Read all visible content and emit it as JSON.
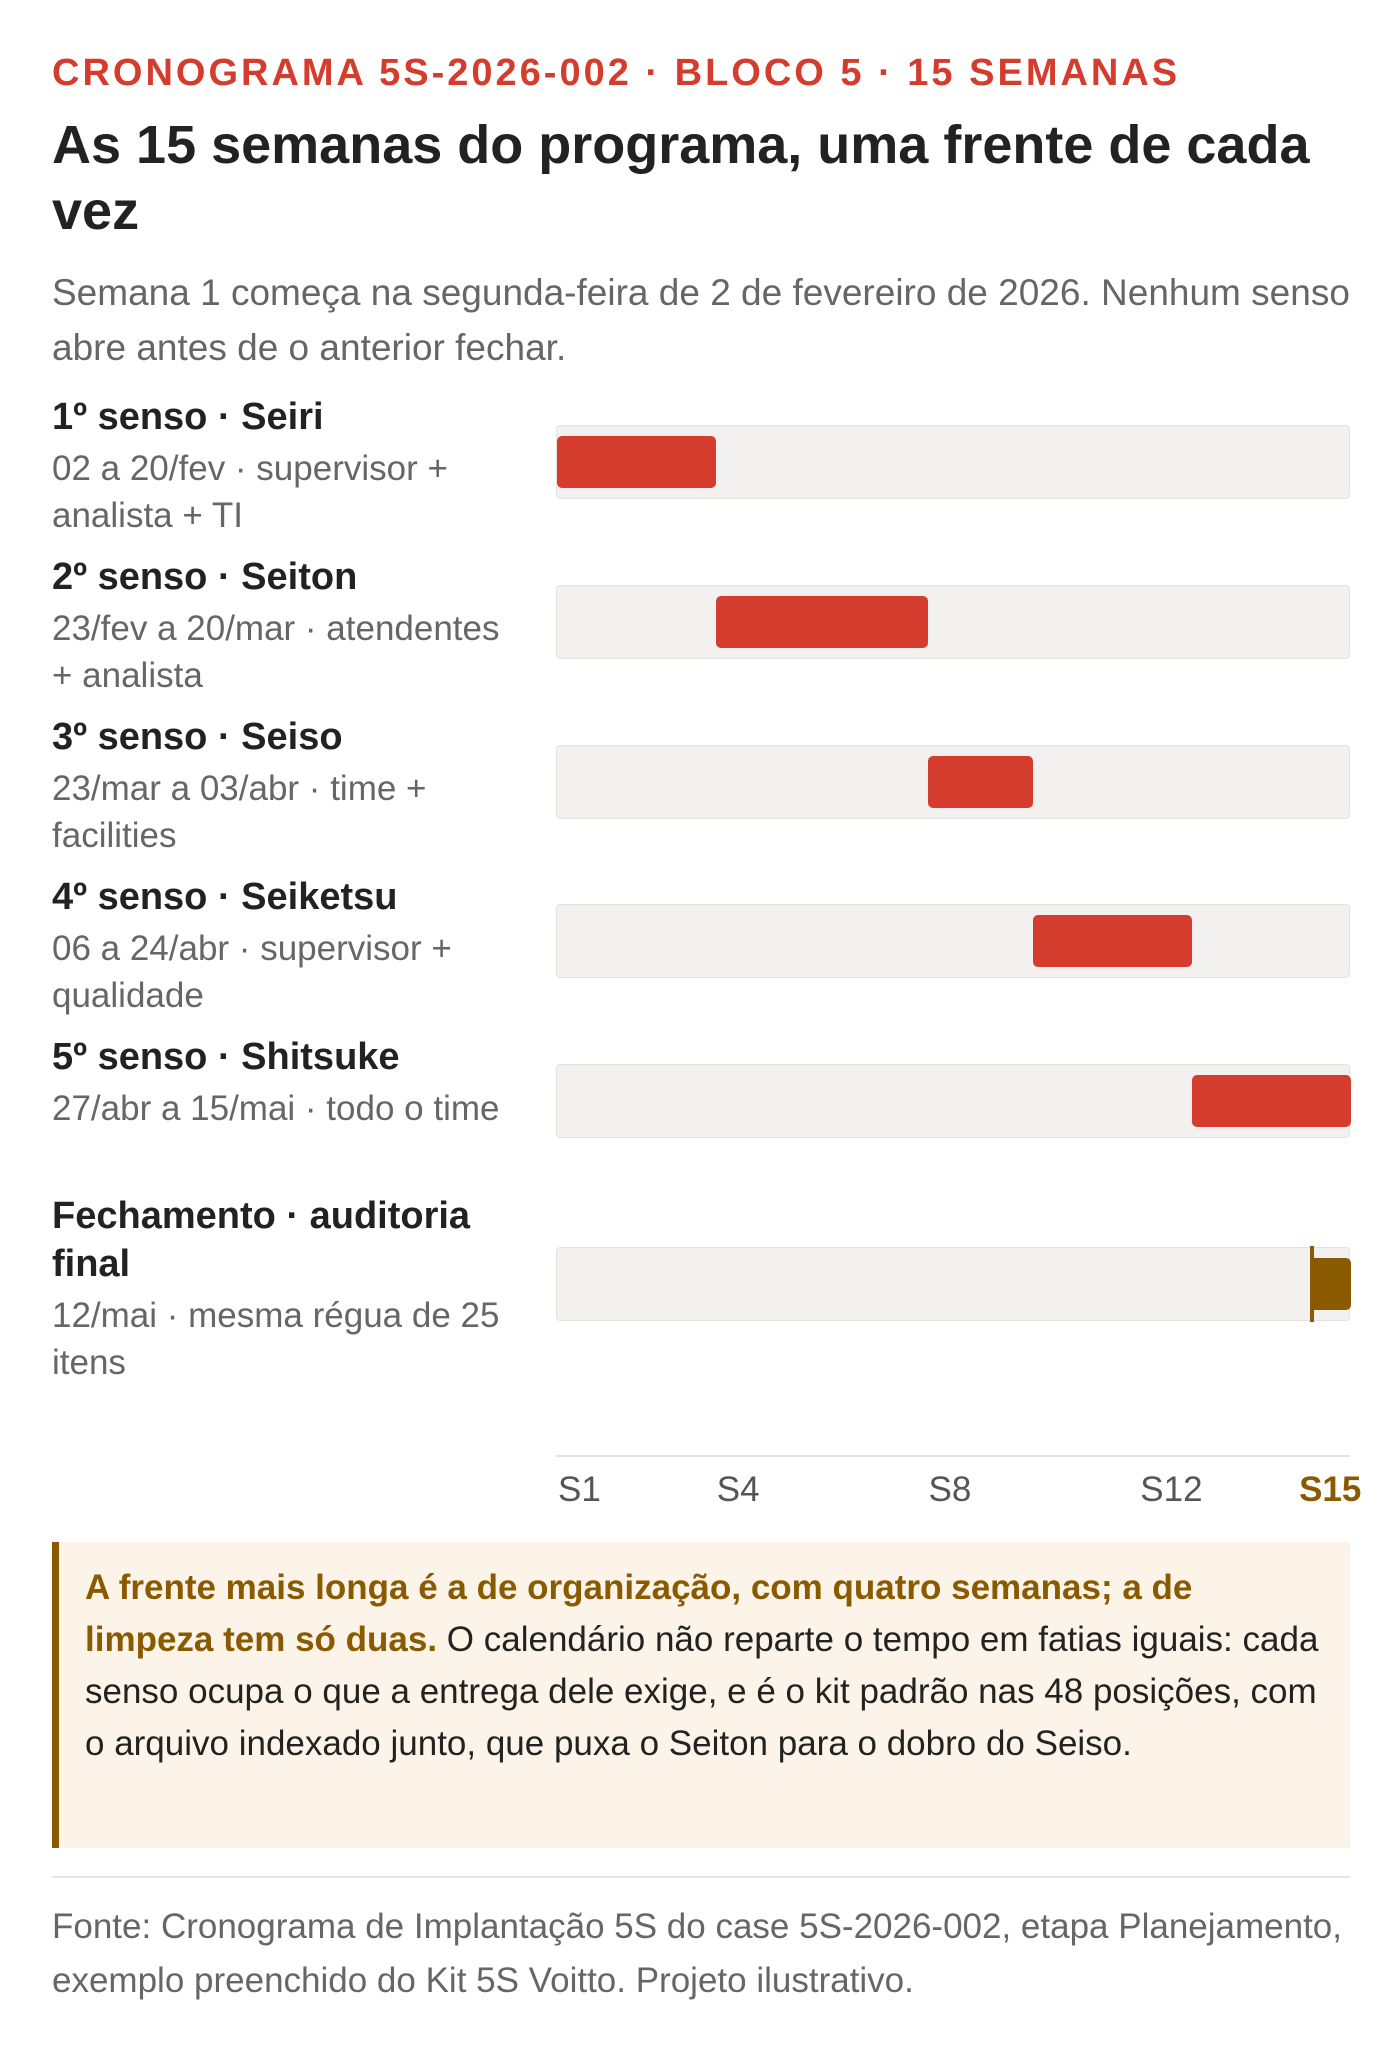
{
  "kicker": "CRONOGRAMA 5S-2026-002 · BLOCO 5 · 15 SEMANAS",
  "title": "As 15 semanas do programa, uma frente de cada vez",
  "subtitle": "Semana 1 começa na segunda-feira de 2 de fevereiro de 2026. Nenhum senso abre antes de o anterior fechar.",
  "chart_data": {
    "type": "gantt",
    "x_unit": "semana",
    "xlim": [
      1,
      16
    ],
    "ticks": [
      "S1",
      "S4",
      "S8",
      "S12",
      "S15"
    ],
    "tick_values": [
      1,
      4,
      8,
      12,
      15
    ],
    "rows": [
      {
        "title": "1º senso · Seiri",
        "subtitle": "02 a 20/fev · supervisor + analista + TI",
        "start_week": 1,
        "end_week": 3,
        "kind": "bar"
      },
      {
        "title": "2º senso · Seiton",
        "subtitle": "23/fev a 20/mar · atendentes + analista",
        "start_week": 4,
        "end_week": 7,
        "kind": "bar"
      },
      {
        "title": "3º senso · Seiso",
        "subtitle": "23/mar a 03/abr · time + facilities",
        "start_week": 8,
        "end_week": 9,
        "kind": "bar"
      },
      {
        "title": "4º senso · Seiketsu",
        "subtitle": "06 a 24/abr · supervisor + qualidade",
        "start_week": 10,
        "end_week": 12,
        "kind": "bar"
      },
      {
        "title": "5º senso · Shitsuke",
        "subtitle": "27/abr a 15/mai · todo o time",
        "start_week": 13,
        "end_week": 15,
        "kind": "bar"
      },
      {
        "title": "Fechamento · auditoria final",
        "subtitle": "12/mai · mesma régua de 25 itens",
        "start_week": 15,
        "end_week": 15,
        "kind": "milestone"
      }
    ],
    "colors": {
      "bar": "#d43d2e",
      "milestone": "#8a5a00",
      "track": "#f3f1ef"
    }
  },
  "callout": {
    "lead": "A frente mais longa é a de organização, com quatro semanas; a de limpeza tem só duas.",
    "body": " O calendário não reparte o tempo em fatias iguais: cada senso ocupa o que a entrega dele exige, e é o kit padrão nas 48 posições, com o arquivo indexado junto, que puxa o Seiton para o dobro do Seiso."
  },
  "source": "Fonte: Cronograma de Implantação 5S do case 5S-2026-002, etapa Planejamento, exemplo preenchido do Kit 5S Voitto. Projeto ilustrativo."
}
